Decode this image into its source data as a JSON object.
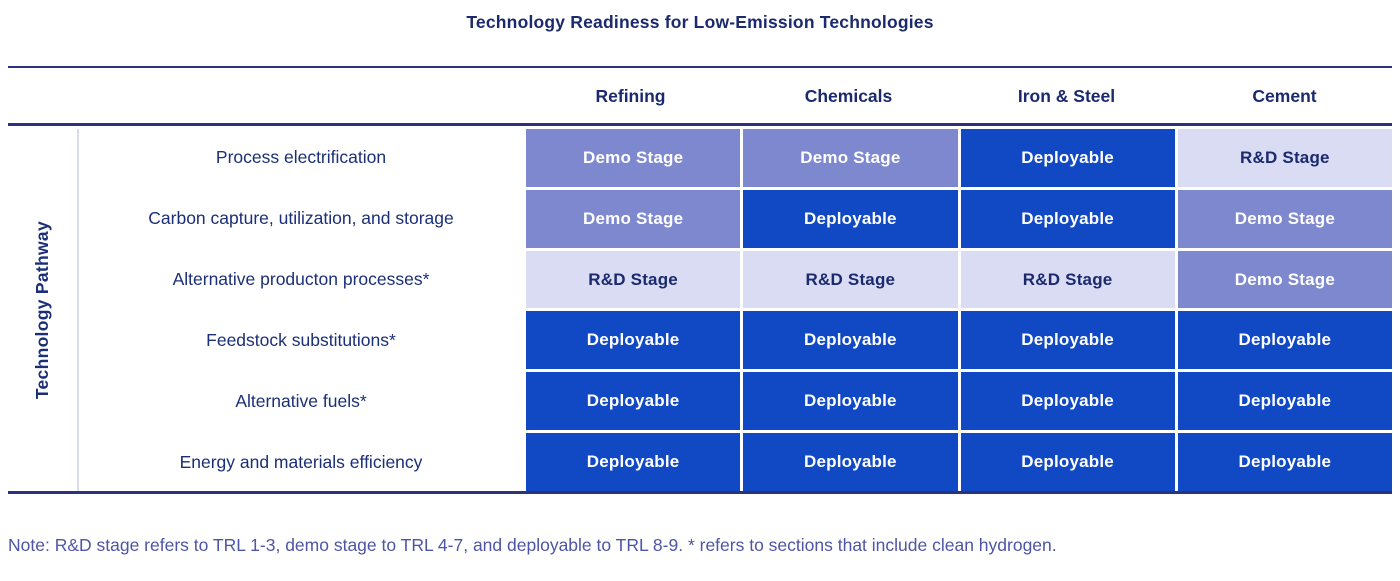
{
  "title": "Technology Readiness for Low-Emission Technologies",
  "y_axis_label": "Technology Pathway",
  "grid": {
    "columns": [
      "Refining",
      "Chemicals",
      "Iron & Steel",
      "Cement"
    ],
    "rows": [
      {
        "label": "Process electrification",
        "cells": [
          "demo",
          "demo",
          "deploy",
          "rd"
        ]
      },
      {
        "label": "Carbon capture, utilization, and storage",
        "cells": [
          "demo",
          "deploy",
          "deploy",
          "demo"
        ]
      },
      {
        "label": "Alternative producton processes*",
        "cells": [
          "rd",
          "rd",
          "rd",
          "demo"
        ]
      },
      {
        "label": "Feedstock substitutions*",
        "cells": [
          "deploy",
          "deploy",
          "deploy",
          "deploy"
        ]
      },
      {
        "label": "Alternative fuels*",
        "cells": [
          "deploy",
          "deploy",
          "deploy",
          "deploy"
        ]
      },
      {
        "label": "Energy and materials efficiency",
        "cells": [
          "deploy",
          "deploy",
          "deploy",
          "deploy"
        ]
      }
    ]
  },
  "stages": {
    "demo": {
      "label": "Demo Stage",
      "bg": "#7e88ce",
      "fg": "#ffffff"
    },
    "deploy": {
      "label": "Deployable",
      "bg": "#1149c4",
      "fg": "#ffffff"
    },
    "rd": {
      "label": "R&D Stage",
      "bg": "#d9dcf2",
      "fg": "#1b2a6e"
    }
  },
  "note": "Note: R&D stage refers to TRL 1-3, demo stage to TRL 4-7, and deployable to TRL 8-9. * refers to sections that include clean hydrogen.",
  "colors": {
    "title_text": "#1b2a6e",
    "header_text": "#1b2a6e",
    "row_label_text": "#1b2f77",
    "rule": "#2b3478",
    "note_text": "#4d55a5",
    "divider": "#d9dcee",
    "background": "#ffffff"
  },
  "chart_data": {
    "type": "heatmap",
    "title": "Technology Readiness for Low-Emission Technologies",
    "x_categories": [
      "Refining",
      "Chemicals",
      "Iron & Steel",
      "Cement"
    ],
    "y_categories": [
      "Process electrification",
      "Carbon capture, utilization, and storage",
      "Alternative producton processes*",
      "Feedstock substitutions*",
      "Alternative fuels*",
      "Energy and materials efficiency"
    ],
    "y_axis_label": "Technology Pathway",
    "values": [
      [
        "Demo Stage",
        "Demo Stage",
        "Deployable",
        "R&D Stage"
      ],
      [
        "Demo Stage",
        "Deployable",
        "Deployable",
        "Demo Stage"
      ],
      [
        "R&D Stage",
        "R&D Stage",
        "R&D Stage",
        "Demo Stage"
      ],
      [
        "Deployable",
        "Deployable",
        "Deployable",
        "Deployable"
      ],
      [
        "Deployable",
        "Deployable",
        "Deployable",
        "Deployable"
      ],
      [
        "Deployable",
        "Deployable",
        "Deployable",
        "Deployable"
      ]
    ],
    "levels": [
      {
        "label": "R&D Stage",
        "trl": "TRL 1-3",
        "color": "#d9dcf2"
      },
      {
        "label": "Demo Stage",
        "trl": "TRL 4-7",
        "color": "#7e88ce"
      },
      {
        "label": "Deployable",
        "trl": "TRL 8-9",
        "color": "#1149c4"
      }
    ],
    "note": "Note: R&D stage refers to TRL 1-3, demo stage to TRL 4-7, and deployable to TRL 8-9. * refers to sections that include clean hydrogen.",
    "legend_position": "none",
    "grid": false
  }
}
